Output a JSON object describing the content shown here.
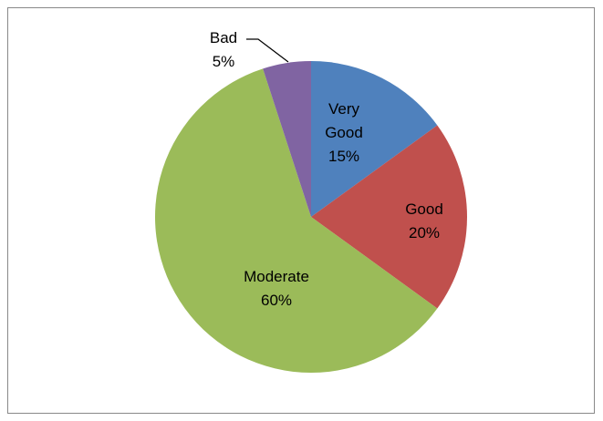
{
  "chart_data": {
    "type": "pie",
    "categories": [
      "Very Good",
      "Good",
      "Moderate",
      "Bad"
    ],
    "values": [
      15,
      20,
      60,
      5
    ],
    "value_labels": [
      "15%",
      "20%",
      "60%",
      "5%"
    ],
    "colors": [
      "#4f81bd",
      "#c0504d",
      "#9bbb59",
      "#8064a2"
    ]
  }
}
